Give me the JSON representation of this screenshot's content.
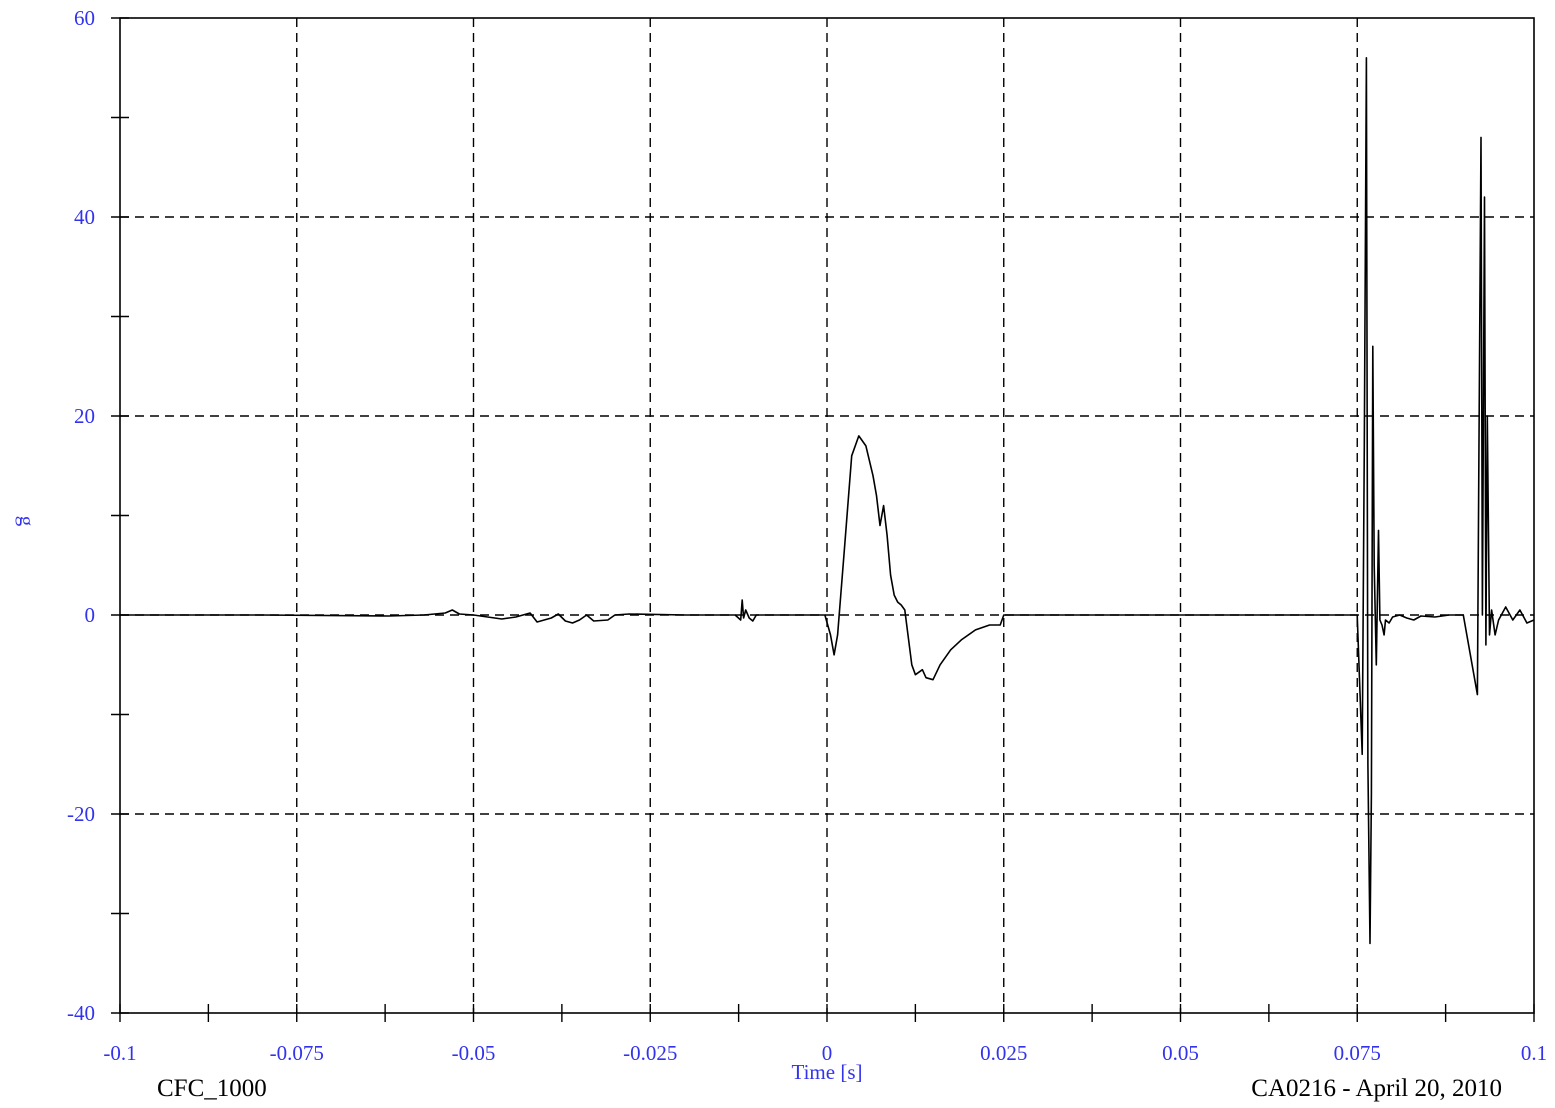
{
  "chart_data": {
    "type": "line",
    "title": "",
    "xlabel": "Time [s]",
    "ylabel": "g",
    "xlim": [
      -0.1,
      0.1
    ],
    "ylim": [
      -40,
      60
    ],
    "x_ticks": [
      -0.1,
      -0.075,
      -0.05,
      -0.025,
      0,
      0.025,
      0.05,
      0.075,
      0.1
    ],
    "x_tick_labels": [
      "-0.1",
      "-0.075",
      "-0.05",
      "-0.025",
      "0",
      "0.025",
      "0.05",
      "0.075",
      "0.1"
    ],
    "y_ticks": [
      -40,
      -20,
      0,
      20,
      40,
      60
    ],
    "y_tick_labels": [
      "-40",
      "-20",
      "0",
      "20",
      "40",
      "60"
    ],
    "grid": true,
    "grid_style": "dashed",
    "series": [
      {
        "color": "#000000",
        "x": [
          -0.1,
          -0.08,
          -0.062,
          -0.057,
          -0.054,
          -0.053,
          -0.052,
          -0.05,
          -0.046,
          -0.044,
          -0.042,
          -0.041,
          -0.039,
          -0.038,
          -0.037,
          -0.036,
          -0.035,
          -0.034,
          -0.033,
          -0.031,
          -0.03,
          -0.028,
          -0.02,
          -0.013,
          -0.0122,
          -0.012,
          -0.0118,
          -0.0115,
          -0.011,
          -0.0105,
          -0.01,
          -0.005,
          -0.0003,
          0.0005,
          0.001,
          0.0015,
          0.0025,
          0.0035,
          0.0045,
          0.0055,
          0.0065,
          0.007,
          0.0075,
          0.008,
          0.0085,
          0.009,
          0.0095,
          0.01,
          0.0105,
          0.011,
          0.012,
          0.0125,
          0.0135,
          0.014,
          0.015,
          0.016,
          0.0175,
          0.019,
          0.021,
          0.023,
          0.0245,
          0.025,
          0.0265,
          0.03,
          0.05,
          0.075,
          0.0757,
          0.076,
          0.0763,
          0.0765,
          0.0768,
          0.077,
          0.0772,
          0.0774,
          0.0777,
          0.078,
          0.0782,
          0.0785,
          0.0788,
          0.079,
          0.0795,
          0.08,
          0.081,
          0.082,
          0.083,
          0.084,
          0.086,
          0.088,
          0.09,
          0.092,
          0.0922,
          0.0925,
          0.0927,
          0.093,
          0.0932,
          0.0934,
          0.0937,
          0.094,
          0.0945,
          0.095,
          0.096,
          0.097,
          0.098,
          0.099,
          0.1
        ],
        "y": [
          0,
          0,
          -0.1,
          0,
          0.2,
          0.5,
          0.1,
          0,
          -0.4,
          -0.2,
          0.2,
          -0.7,
          -0.3,
          0.1,
          -0.6,
          -0.8,
          -0.5,
          0,
          -0.6,
          -0.5,
          0,
          0.1,
          0,
          0,
          -0.5,
          1.5,
          -0.3,
          0.5,
          -0.3,
          -0.6,
          0,
          0,
          0,
          -2,
          -4,
          -2,
          7,
          16,
          18,
          17,
          14,
          12,
          9,
          11,
          8,
          4,
          2,
          1.3,
          1,
          0.5,
          -5,
          -6,
          -5.5,
          -6.3,
          -6.5,
          -5,
          -3.5,
          -2.5,
          -1.5,
          -1,
          -1,
          0,
          0,
          0,
          0,
          0,
          -14,
          17,
          56,
          -15,
          -33,
          -18,
          27,
          5,
          -5,
          8.5,
          -0.5,
          -1,
          -2,
          -0.5,
          -0.8,
          -0.2,
          0,
          -0.3,
          -0.5,
          -0.1,
          -0.2,
          0,
          0,
          -8,
          16,
          48,
          0,
          42,
          -3,
          20,
          -2,
          0.5,
          -2,
          -0.5,
          0.8,
          -0.5,
          0.5,
          -0.8,
          -0.5
        ]
      }
    ]
  },
  "footer": {
    "left": "CFC_1000",
    "right": "CA0216 - April 20, 2010"
  }
}
